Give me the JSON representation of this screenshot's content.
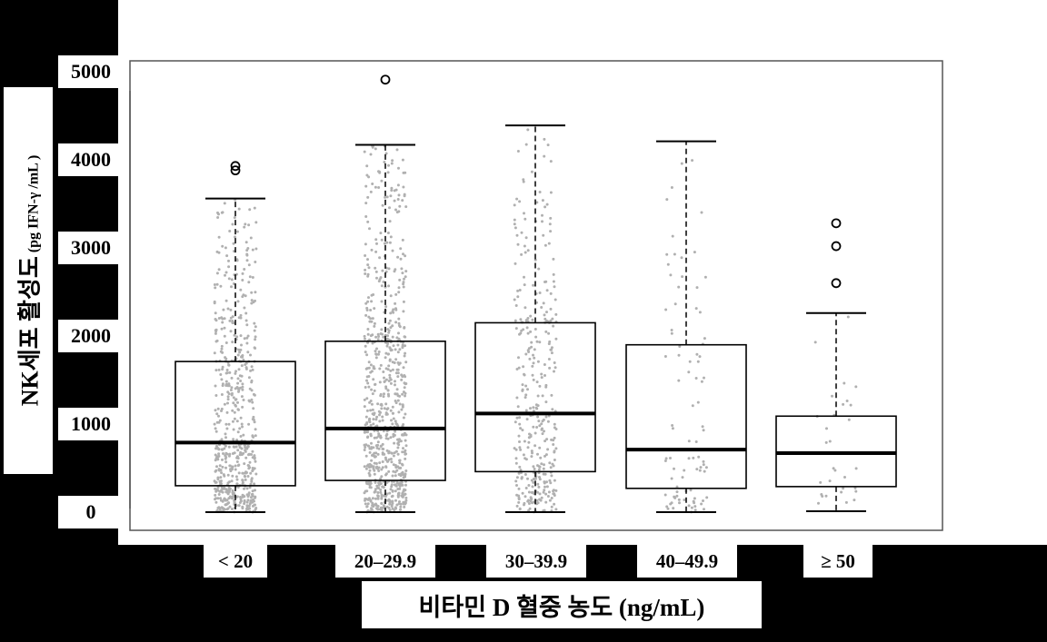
{
  "chart_data": {
    "type": "box",
    "xlabel": "비타민 D 혈중 농도 (ng/mL)",
    "ylabel": "NK세포 활성도",
    "ylabel_unit": "(pg IFN-γ /mL )",
    "y_ticks": [
      "5000",
      "4000",
      "3000",
      "2000",
      "1000",
      "0"
    ],
    "ylim": [
      0,
      5000
    ],
    "grid": false,
    "categories": [
      "< 20",
      "20–29.9",
      "30–39.9",
      "40–49.9",
      "≥ 50"
    ],
    "series": [
      {
        "label": "< 20",
        "whisker_low": 0,
        "q1": 300,
        "median": 790,
        "q3": 1710,
        "whisker_high": 3560,
        "outliers": [
          3930,
          3880
        ],
        "n_points": 600
      },
      {
        "label": "20–29.9",
        "whisker_low": 0,
        "q1": 360,
        "median": 950,
        "q3": 1940,
        "whisker_high": 4170,
        "outliers": [
          4910
        ],
        "n_points": 750
      },
      {
        "label": "30–39.9",
        "whisker_low": 0,
        "q1": 460,
        "median": 1120,
        "q3": 2150,
        "whisker_high": 4390,
        "outliers": [],
        "n_points": 350
      },
      {
        "label": "40–49.9",
        "whisker_low": 0,
        "q1": 270,
        "median": 710,
        "q3": 1900,
        "whisker_high": 4210,
        "outliers": [],
        "n_points": 90
      },
      {
        "label": "≥ 50",
        "whisker_low": 10,
        "q1": 290,
        "median": 670,
        "q3": 1090,
        "whisker_high": 2260,
        "outliers": [
          3280,
          3020,
          2600
        ],
        "n_points": 30
      }
    ],
    "colors": {
      "box": "#000000",
      "points": "#b0b0b0",
      "background": "#000000"
    }
  }
}
